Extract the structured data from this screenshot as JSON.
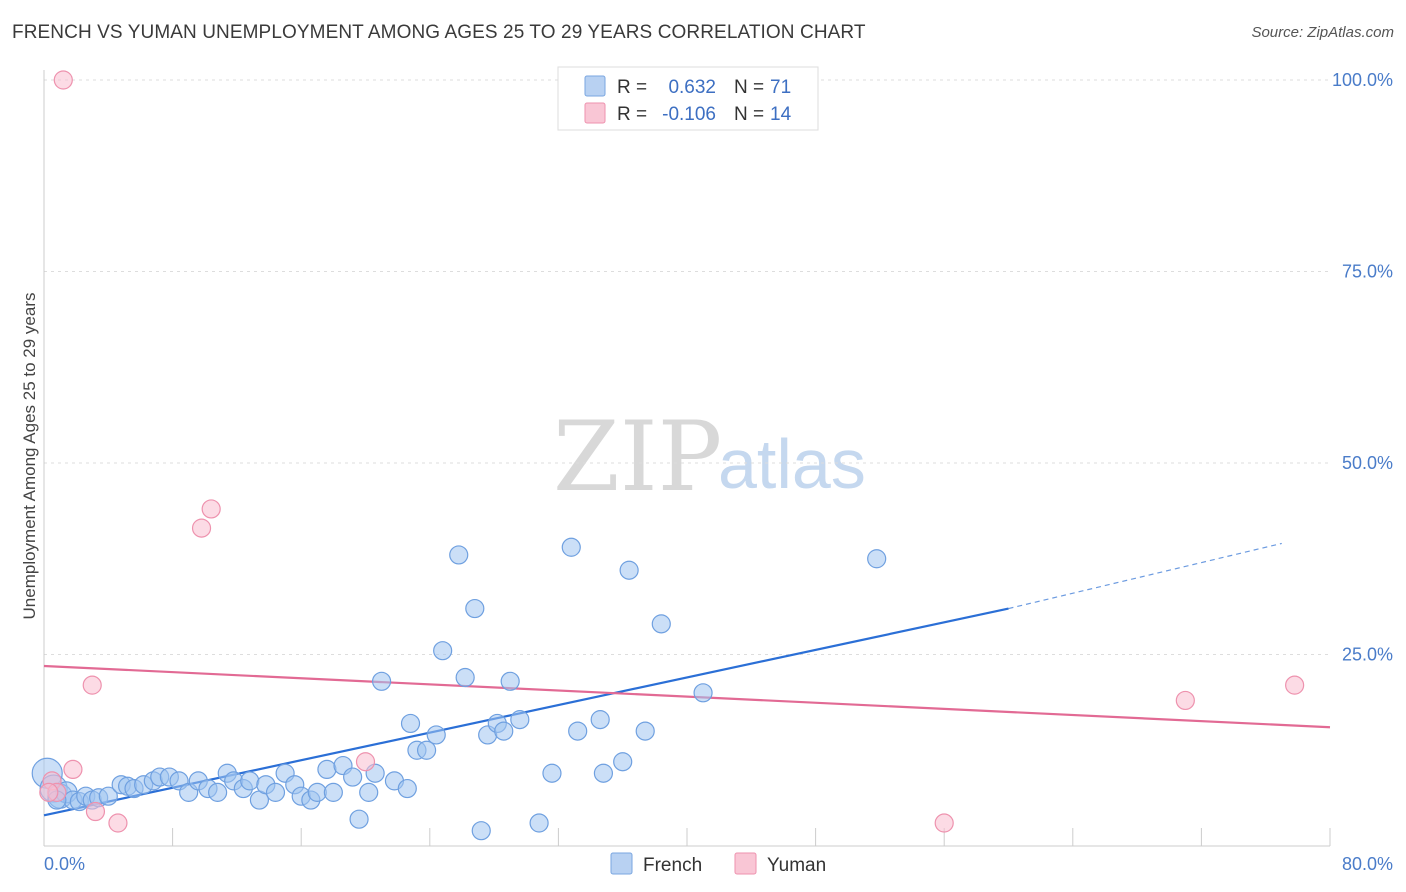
{
  "title": "FRENCH VS YUMAN UNEMPLOYMENT AMONG AGES 25 TO 29 YEARS CORRELATION CHART",
  "source": "Source: ZipAtlas.com",
  "watermark": {
    "zip": "ZIP",
    "atlas": "atlas"
  },
  "legend_box": {
    "r_label": "R =",
    "n_label": "N =",
    "rows": [
      {
        "name": "French",
        "r": "0.632",
        "n": "71",
        "fill": "#b8d1f2",
        "stroke": "#7aa6e0"
      },
      {
        "name": "Yuman",
        "r": "-0.106",
        "n": "14",
        "fill": "#f9c6d5",
        "stroke": "#ee92ae"
      }
    ]
  },
  "bottom_legend": [
    {
      "name": "French",
      "fill": "#b8d1f2",
      "stroke": "#7aa6e0"
    },
    {
      "name": "Yuman",
      "fill": "#f9c6d5",
      "stroke": "#ee92ae"
    }
  ],
  "chart_data": {
    "type": "scatter",
    "title": "FRENCH VS YUMAN UNEMPLOYMENT AMONG AGES 25 TO 29 YEARS CORRELATION CHART",
    "xlabel": "",
    "ylabel": "Unemployment Among Ages 25 to 29 years",
    "xlim": [
      0,
      80
    ],
    "ylim": [
      0,
      100
    ],
    "x_tick_labels": [
      {
        "value": 0,
        "label": "0.0%"
      },
      {
        "value": 80,
        "label": "80.0%"
      }
    ],
    "y_tick_labels": [
      {
        "value": 25,
        "label": "25.0%"
      },
      {
        "value": 50,
        "label": "50.0%"
      },
      {
        "value": 75,
        "label": "75.0%"
      },
      {
        "value": 100,
        "label": "100.0%"
      }
    ],
    "grid": true,
    "legend_position": "bottom-center",
    "series": [
      {
        "name": "French",
        "color": "#6fa0e0",
        "points": [
          [
            0.2,
            9.5
          ],
          [
            0.6,
            7.5
          ],
          [
            1.0,
            6.5
          ],
          [
            1.4,
            7.0
          ],
          [
            1.8,
            6.0
          ],
          [
            2.2,
            5.8
          ],
          [
            2.6,
            6.5
          ],
          [
            3.0,
            6.0
          ],
          [
            3.4,
            6.3
          ],
          [
            4.0,
            6.5
          ],
          [
            4.8,
            8.0
          ],
          [
            5.2,
            7.8
          ],
          [
            5.6,
            7.5
          ],
          [
            6.2,
            8.0
          ],
          [
            6.8,
            8.5
          ],
          [
            7.2,
            9.0
          ],
          [
            7.8,
            9.0
          ],
          [
            8.4,
            8.5
          ],
          [
            9.0,
            7.0
          ],
          [
            9.6,
            8.5
          ],
          [
            10.2,
            7.5
          ],
          [
            10.8,
            7.0
          ],
          [
            11.4,
            9.5
          ],
          [
            11.8,
            8.5
          ],
          [
            12.4,
            7.5
          ],
          [
            12.8,
            8.5
          ],
          [
            13.4,
            6.0
          ],
          [
            13.8,
            8.0
          ],
          [
            14.4,
            7.0
          ],
          [
            15.0,
            9.5
          ],
          [
            15.6,
            8.0
          ],
          [
            16.0,
            6.5
          ],
          [
            16.6,
            6.0
          ],
          [
            17.0,
            7.0
          ],
          [
            17.6,
            10.0
          ],
          [
            18.0,
            7.0
          ],
          [
            18.6,
            10.5
          ],
          [
            19.2,
            9.0
          ],
          [
            19.6,
            3.5
          ],
          [
            20.2,
            7.0
          ],
          [
            20.6,
            9.5
          ],
          [
            21.0,
            21.5
          ],
          [
            21.8,
            8.5
          ],
          [
            22.6,
            7.5
          ],
          [
            22.8,
            16.0
          ],
          [
            23.2,
            12.5
          ],
          [
            23.8,
            12.5
          ],
          [
            24.4,
            14.5
          ],
          [
            24.8,
            25.5
          ],
          [
            25.8,
            38.0
          ],
          [
            26.2,
            22.0
          ],
          [
            26.8,
            31.0
          ],
          [
            27.2,
            2.0
          ],
          [
            27.6,
            14.5
          ],
          [
            28.2,
            16.0
          ],
          [
            28.6,
            15.0
          ],
          [
            29.0,
            21.5
          ],
          [
            29.6,
            16.5
          ],
          [
            30.8,
            3.0
          ],
          [
            31.6,
            9.5
          ],
          [
            32.8,
            39.0
          ],
          [
            33.2,
            15.0
          ],
          [
            34.6,
            16.5
          ],
          [
            34.8,
            9.5
          ],
          [
            36.0,
            11.0
          ],
          [
            36.4,
            36.0
          ],
          [
            37.4,
            15.0
          ],
          [
            38.4,
            29.0
          ],
          [
            41.0,
            20.0
          ],
          [
            51.8,
            37.5
          ],
          [
            0.8,
            6.0
          ]
        ],
        "trendline": {
          "x": [
            0,
            60
          ],
          "y": [
            4.0,
            31.0
          ],
          "dashed_extension_to": [
            77,
            39.5
          ]
        }
      },
      {
        "name": "Yuman",
        "color": "#ee92ae",
        "points": [
          [
            0.5,
            8.5
          ],
          [
            0.8,
            7.0
          ],
          [
            1.8,
            10.0
          ],
          [
            3.0,
            21.0
          ],
          [
            3.2,
            4.5
          ],
          [
            4.6,
            3.0
          ],
          [
            9.8,
            41.5
          ],
          [
            10.4,
            44.0
          ],
          [
            20.0,
            11.0
          ],
          [
            1.2,
            100.0
          ],
          [
            56.0,
            3.0
          ],
          [
            71.0,
            19.0
          ],
          [
            77.8,
            21.0
          ],
          [
            0.3,
            7.0
          ]
        ],
        "trendline": {
          "x": [
            0,
            80
          ],
          "y": [
            23.5,
            15.5
          ]
        }
      }
    ]
  }
}
